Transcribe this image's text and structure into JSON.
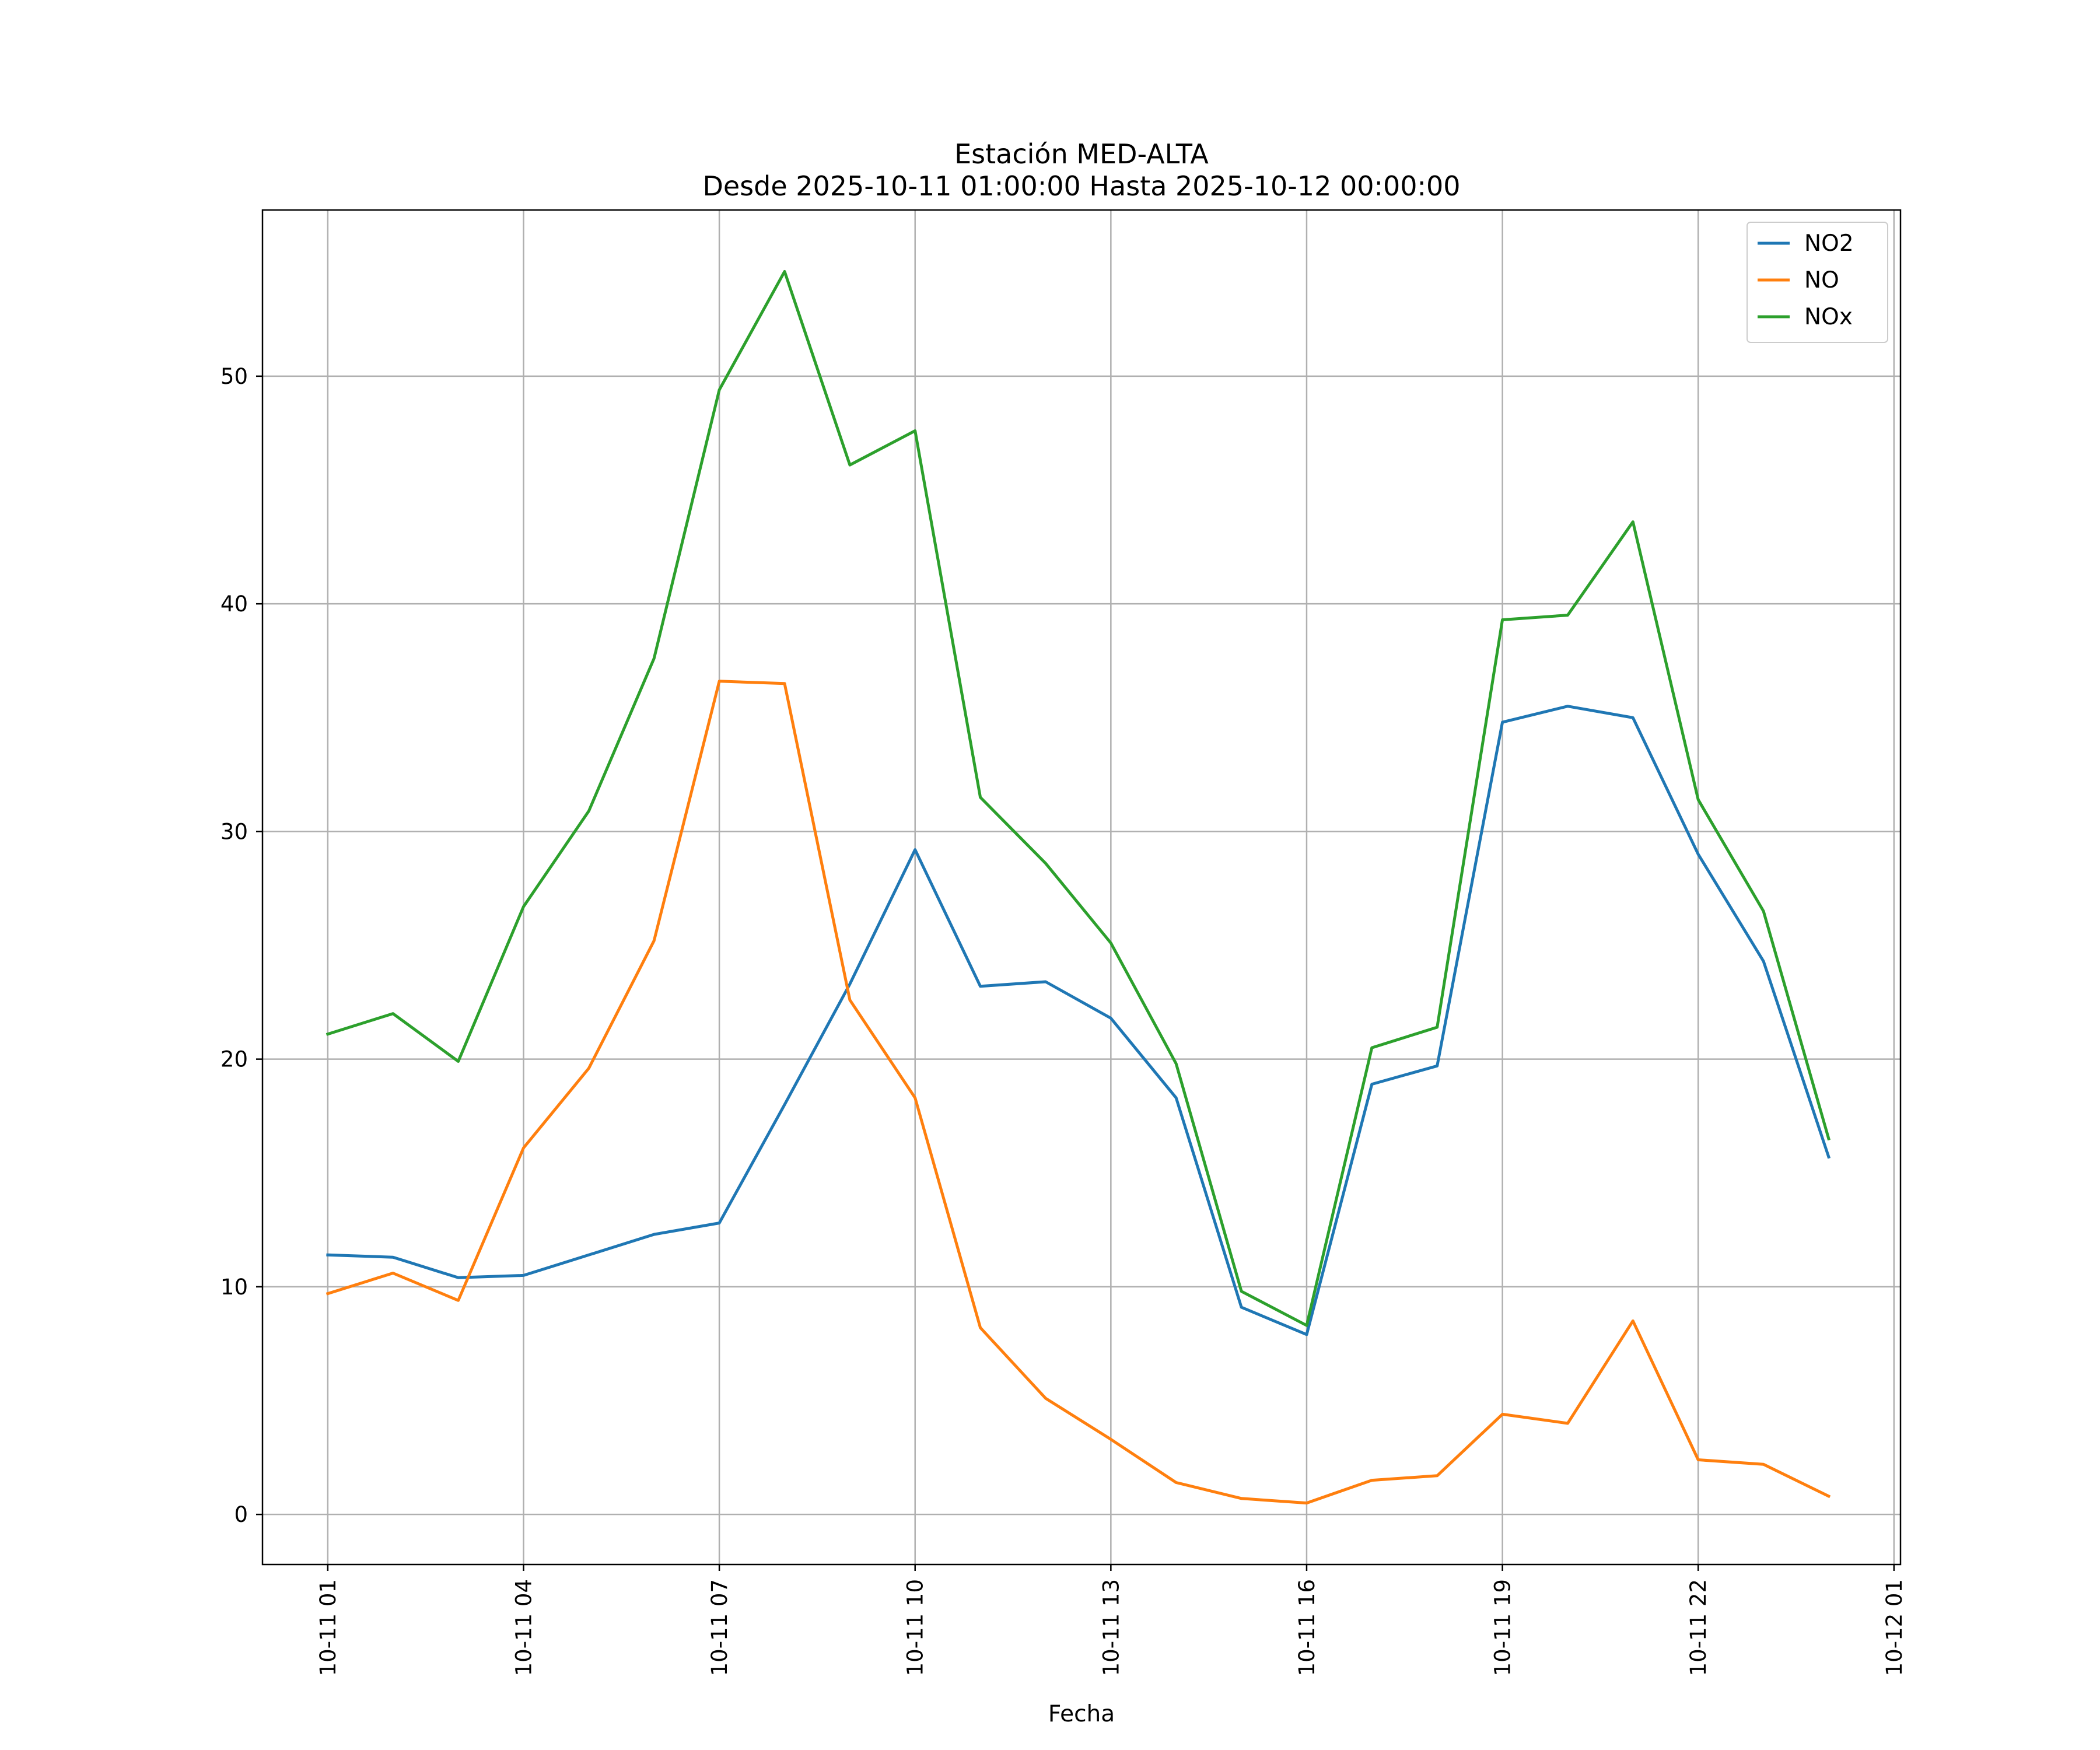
{
  "chart_data": {
    "type": "line",
    "title_line1": "Estación MED-ALTA",
    "title_line2": "Desde 2025-10-11 01:00:00 Hasta 2025-10-12 00:00:00",
    "xlabel": "Fecha",
    "ylabel": "",
    "x": [
      "10-11 01",
      "10-11 02",
      "10-11 03",
      "10-11 04",
      "10-11 05",
      "10-11 06",
      "10-11 07",
      "10-11 08",
      "10-11 09",
      "10-11 10",
      "10-11 11",
      "10-11 12",
      "10-11 13",
      "10-11 14",
      "10-11 15",
      "10-11 16",
      "10-11 17",
      "10-11 18",
      "10-11 19",
      "10-11 20",
      "10-11 21",
      "10-11 22",
      "10-11 23",
      "10-12 00"
    ],
    "x_ticks": [
      "10-11 01",
      "10-11 04",
      "10-11 07",
      "10-11 10",
      "10-11 13",
      "10-11 16",
      "10-11 19",
      "10-11 22",
      "10-12 01"
    ],
    "xlim": [
      "10-11 00:00",
      "10-12 01:06"
    ],
    "ylim": [
      -2.2,
      57.3
    ],
    "y_ticks": [
      0,
      10,
      20,
      30,
      40,
      50
    ],
    "grid": true,
    "legend_position": "top-right",
    "series": [
      {
        "name": "NO2",
        "color": "#1f77b4",
        "values": [
          11.4,
          11.3,
          10.4,
          10.5,
          11.4,
          12.3,
          12.8,
          18.0,
          23.3,
          29.2,
          23.2,
          23.4,
          21.8,
          18.3,
          9.1,
          7.9,
          18.9,
          19.7,
          34.8,
          35.5,
          35.0,
          29.0,
          24.3,
          15.7
        ]
      },
      {
        "name": "NO",
        "color": "#ff7f0e",
        "values": [
          9.7,
          10.6,
          9.4,
          16.1,
          19.6,
          25.2,
          36.6,
          36.5,
          22.6,
          18.3,
          8.2,
          5.1,
          3.3,
          1.4,
          0.7,
          0.5,
          1.5,
          1.7,
          4.4,
          4.0,
          8.5,
          2.4,
          2.2,
          0.8
        ]
      },
      {
        "name": "NOx",
        "color": "#2ca02c",
        "values": [
          21.1,
          22.0,
          19.9,
          26.7,
          30.9,
          37.6,
          49.4,
          54.6,
          46.1,
          47.6,
          31.5,
          28.6,
          25.1,
          19.8,
          9.8,
          8.3,
          20.5,
          21.4,
          39.3,
          39.5,
          43.6,
          31.4,
          26.5,
          16.5
        ]
      }
    ]
  }
}
